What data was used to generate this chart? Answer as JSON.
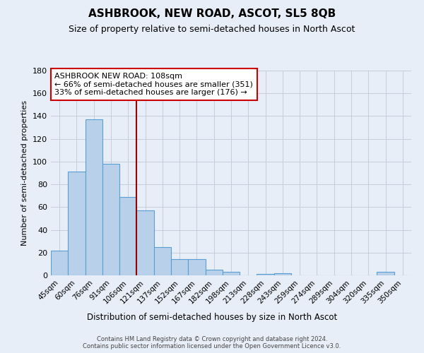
{
  "title": "ASHBROOK, NEW ROAD, ASCOT, SL5 8QB",
  "subtitle": "Size of property relative to semi-detached houses in North Ascot",
  "xlabel": "Distribution of semi-detached houses by size in North Ascot",
  "ylabel": "Number of semi-detached properties",
  "bin_labels": [
    "45sqm",
    "60sqm",
    "76sqm",
    "91sqm",
    "106sqm",
    "121sqm",
    "137sqm",
    "152sqm",
    "167sqm",
    "182sqm",
    "198sqm",
    "213sqm",
    "228sqm",
    "243sqm",
    "259sqm",
    "274sqm",
    "289sqm",
    "304sqm",
    "320sqm",
    "335sqm",
    "350sqm"
  ],
  "values": [
    22,
    91,
    137,
    98,
    69,
    57,
    25,
    14,
    14,
    5,
    3,
    0,
    1,
    2,
    0,
    0,
    0,
    0,
    0,
    3,
    0
  ],
  "bar_color": "#b8d0ea",
  "bar_edge_color": "#5a9fd4",
  "background_color": "#e8eef8",
  "grid_color": "#c5cedd",
  "vline_position": 4.5,
  "vline_color": "#990000",
  "annotation_title": "ASHBROOK NEW ROAD: 108sqm",
  "annotation_line1": "← 66% of semi-detached houses are smaller (351)",
  "annotation_line2": "33% of semi-detached houses are larger (176) →",
  "annotation_box_facecolor": "#ffffff",
  "annotation_box_edgecolor": "#cc0000",
  "ylim": [
    0,
    180
  ],
  "yticks": [
    0,
    20,
    40,
    60,
    80,
    100,
    120,
    140,
    160,
    180
  ],
  "footer_line1": "Contains HM Land Registry data © Crown copyright and database right 2024.",
  "footer_line2": "Contains public sector information licensed under the Open Government Licence v3.0."
}
